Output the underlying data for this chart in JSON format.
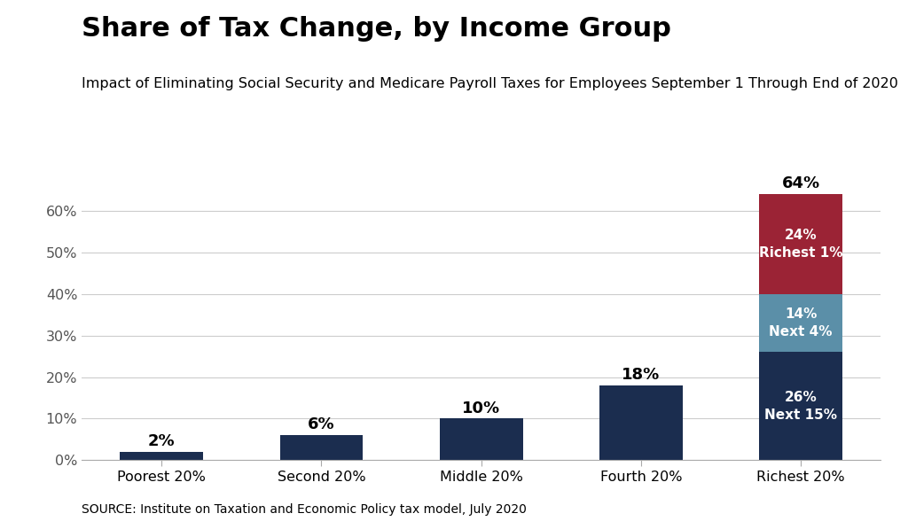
{
  "title": "Share of Tax Change, by Income Group",
  "subtitle": "Impact of Eliminating Social Security and Medicare Payroll Taxes for Employees September 1 Through End of 2020",
  "source": "SOURCE: Institute on Taxation and Economic Policy tax model, July 2020",
  "categories": [
    "Poorest 20%",
    "Second 20%",
    "Middle 20%",
    "Fourth 20%",
    "Richest 20%"
  ],
  "bar_values": [
    2,
    6,
    10,
    18,
    26
  ],
  "bar_labels": [
    "2%",
    "6%",
    "10%",
    "18%"
  ],
  "stacked_segments": [
    {
      "value": 14,
      "color": "#5b8fa8"
    },
    {
      "value": 24,
      "color": "#9b2335"
    }
  ],
  "richest_total_label": "64%",
  "richest_label_bottom": "26%\nNext 15%",
  "richest_label_mid": "14%\nNext 4%",
  "richest_label_top": "24%\nRichest 1%",
  "navy_color": "#1b2d4f",
  "teal_color": "#5b8fa8",
  "red_color": "#9b2335",
  "background_color": "#ffffff",
  "ylim": [
    0,
    70
  ],
  "yticks": [
    0,
    10,
    20,
    30,
    40,
    50,
    60
  ],
  "ytick_labels": [
    "0%",
    "10%",
    "20%",
    "30%",
    "40%",
    "50%",
    "60%"
  ],
  "title_fontsize": 22,
  "subtitle_fontsize": 11.5,
  "source_fontsize": 10,
  "bar_label_fontsize": 13,
  "inside_label_fontsize": 11,
  "tick_fontsize": 11.5
}
